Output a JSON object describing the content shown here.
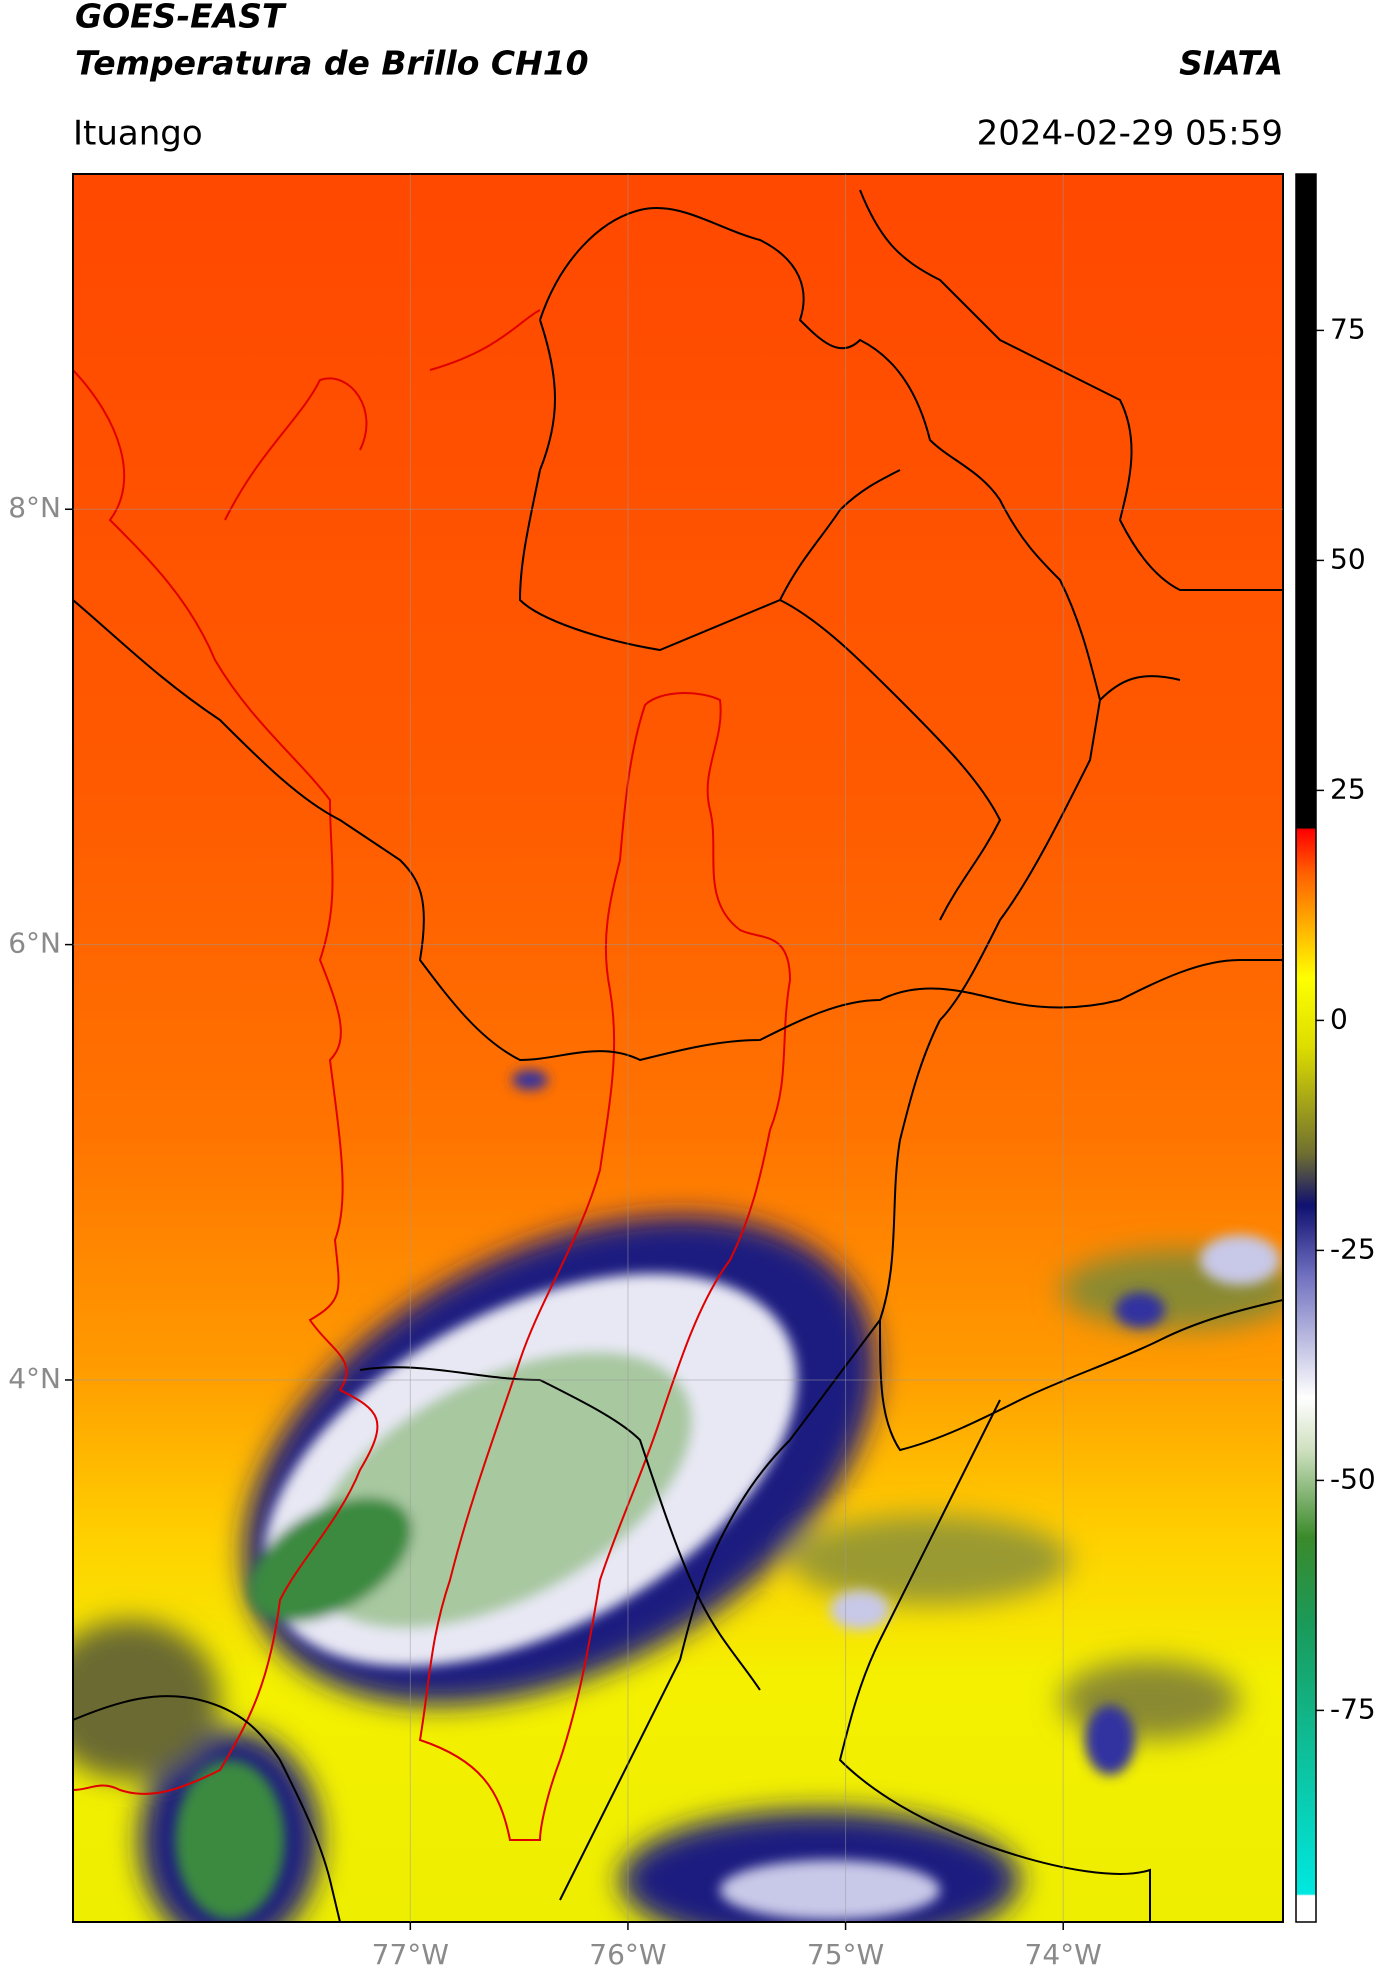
{
  "chart_data": {
    "type": "map",
    "title": "GOES-EAST",
    "subtitle": "Temperatura de Brillo CH10",
    "source": "SIATA",
    "location": "Ituango",
    "datetime": "2024-02-29 05:59",
    "xlim": [
      -78.55,
      -72.99
    ],
    "ylim": [
      1.51,
      9.54
    ],
    "xticks": [
      {
        "value": -77,
        "label": "77°W"
      },
      {
        "value": -76,
        "label": "76°W"
      },
      {
        "value": -75,
        "label": "75°W"
      },
      {
        "value": -74,
        "label": "74°W"
      }
    ],
    "yticks": [
      {
        "value": 8,
        "label": "8°N"
      },
      {
        "value": 6,
        "label": "6°N"
      },
      {
        "value": 4,
        "label": "4°N"
      }
    ],
    "grid": true,
    "colorbar": {
      "vlim": [
        -98,
        92
      ],
      "ticks": [
        -75,
        -50,
        -25,
        0,
        25,
        50,
        75
      ]
    }
  }
}
